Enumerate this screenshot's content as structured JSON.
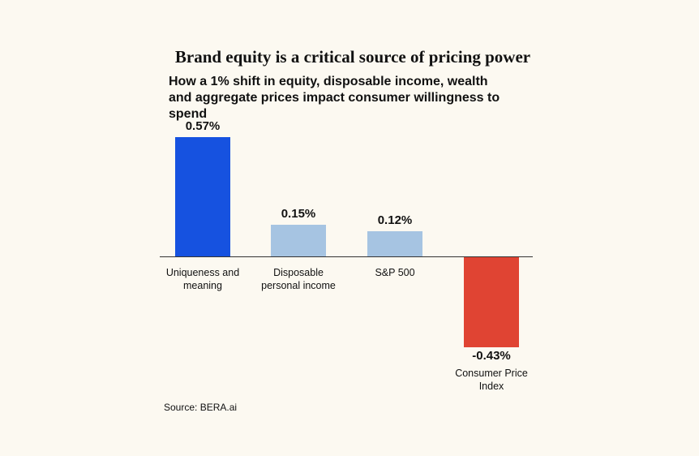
{
  "chart_data": {
    "type": "bar",
    "title": "Brand equity is a critical source of pricing power",
    "subtitle": "How a 1% shift in equity, disposable income, wealth and aggregate prices impact consumer willingness to spend",
    "categories": [
      "Uniqueness and meaning",
      "Disposable personal income",
      "S&P 500",
      "Consumer Price Index"
    ],
    "values": [
      0.57,
      0.15,
      0.12,
      -0.43
    ],
    "value_labels": [
      "0.57%",
      "0.15%",
      "0.12%",
      "-0.43%"
    ],
    "colors": [
      "#1652e0",
      "#a6c4e2",
      "#a6c4e2",
      "#e04433"
    ],
    "source": "Source: BERA.ai"
  }
}
